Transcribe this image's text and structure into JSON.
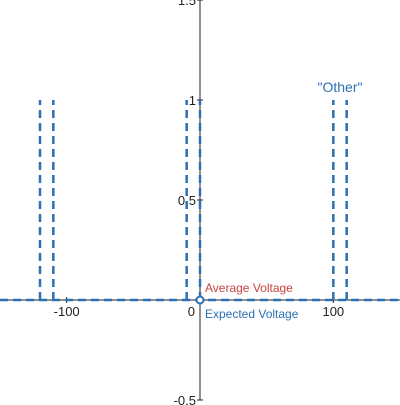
{
  "chart_data": {
    "type": "line",
    "xlim": [
      -150,
      150
    ],
    "ylim": [
      -0.5,
      1.5
    ],
    "x_ticks": [
      {
        "value": -100,
        "label": "-100"
      },
      {
        "value": 0,
        "label": "0"
      },
      {
        "value": 100,
        "label": "100"
      }
    ],
    "y_ticks": [
      {
        "value": -0.5,
        "label": "-0.5"
      },
      {
        "value": 0.5,
        "label": "0.5"
      },
      {
        "value": 1,
        "label": "1"
      },
      {
        "value": 1.5,
        "label": "1.5"
      }
    ],
    "grid": false,
    "series": [
      {
        "name": "Expected Voltage",
        "color": "#2d70b3",
        "style": "dashed",
        "pulses": [
          {
            "x_start": -120,
            "x_end": -110,
            "height": 1
          },
          {
            "x_start": -10,
            "x_end": 0,
            "height": 1
          },
          {
            "x_start": 100,
            "x_end": 110,
            "height": 1
          }
        ]
      }
    ],
    "point": {
      "x": 0,
      "y": 0
    },
    "labels": {
      "average_voltage": {
        "text": "Average Voltage",
        "color": "#c74440"
      },
      "expected_voltage": {
        "text": "Expected Voltage",
        "color": "#2d70b3"
      },
      "other": {
        "text": "\"Other\"",
        "color": "#2d70b3"
      }
    }
  }
}
